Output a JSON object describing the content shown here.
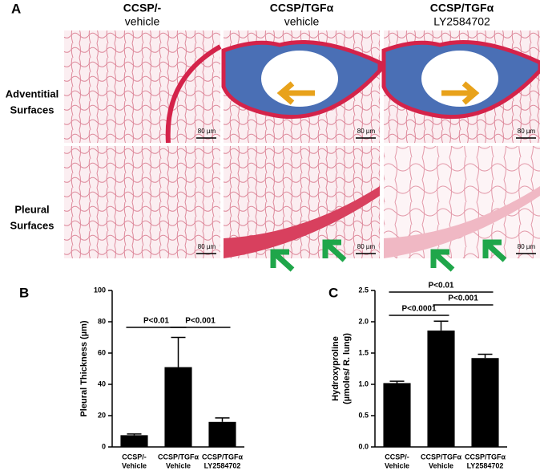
{
  "panel_a": {
    "label": "A",
    "columns": [
      [
        "CCSP/-",
        "vehicle"
      ],
      [
        "CCSP/TGFα",
        "vehicle"
      ],
      [
        "CCSP/TGFα",
        "LY2584702"
      ]
    ],
    "rows": [
      [
        "Adventitial",
        "Surfaces"
      ],
      [
        "Pleural",
        "Surfaces"
      ]
    ],
    "scale_bars": [
      "80 µm",
      "80 µm",
      "80 µm",
      "80 µm",
      "80 µm",
      "80 µm"
    ]
  },
  "chart_data": [
    {
      "type": "bar",
      "panel": "B",
      "ylabel": [
        "Pleural Thickness (µm)"
      ],
      "categories": [
        [
          "CCSP/-",
          "Vehicle"
        ],
        [
          "CCSP/TGFα",
          "Vehicle"
        ],
        [
          "CCSP/TGFα",
          "LY2584702"
        ]
      ],
      "values": [
        7.5,
        51,
        16
      ],
      "errors": [
        0.8,
        19,
        2.5
      ],
      "color": "#000000",
      "ylim": [
        0,
        100
      ],
      "yticks": [
        0,
        20,
        40,
        60,
        80,
        100
      ],
      "annotations": [
        "P<0.01",
        "P<0.001"
      ]
    },
    {
      "type": "bar",
      "panel": "C",
      "ylabel": [
        "Hydroxyproline",
        "(µmoles/ R. lung)"
      ],
      "categories": [
        [
          "CCSP/-",
          "Vehicle"
        ],
        [
          "CCSP/TGFα",
          "Vehicle"
        ],
        [
          "CCSP/TGFα",
          "LY2584702"
        ]
      ],
      "values": [
        1.02,
        1.86,
        1.42
      ],
      "errors": [
        0.03,
        0.15,
        0.06
      ],
      "color": "#000000",
      "ylim": [
        0,
        2.5
      ],
      "yticks": [
        {
          "value": 0,
          "label": "0.0"
        },
        {
          "value": 0.5,
          "label": "0.5"
        },
        {
          "value": 1,
          "label": "1.0"
        },
        {
          "value": 1.5,
          "label": "1.5"
        },
        {
          "value": 2,
          "label": "2.0"
        },
        {
          "value": 2.5,
          "label": "2.5"
        }
      ],
      "annotations": [
        "P<0.01",
        "P<0.0001",
        "P<0.001"
      ]
    }
  ]
}
